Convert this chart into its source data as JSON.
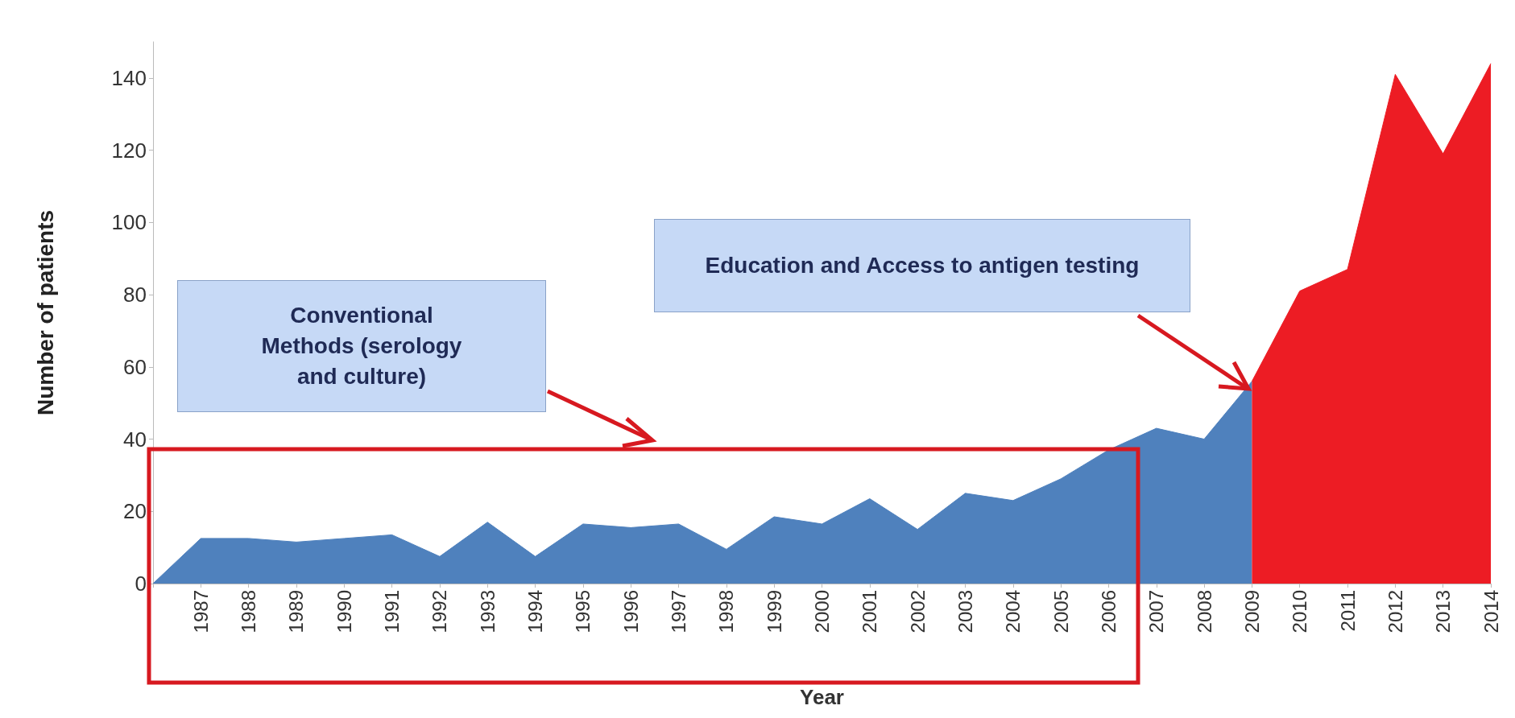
{
  "chart_data": {
    "type": "area",
    "xlabel": "Year",
    "ylabel": "Number of patients",
    "categories": [
      null,
      "1987",
      "1988",
      "1989",
      "1990",
      "1991",
      "1992",
      "1993",
      "1994",
      "1995",
      "1996",
      "1997",
      "1998",
      "1999",
      "2000",
      "2001",
      "2002",
      "2003",
      "2004",
      "2005",
      "2006",
      "2007",
      "2008",
      "2009",
      "2010",
      "2011",
      "2012",
      "2013",
      "2014"
    ],
    "series": [
      {
        "color": "#4f81bd",
        "values": [
          0,
          12.5,
          12.5,
          11.5,
          12.5,
          13.5,
          7.5,
          17,
          7.5,
          16.5,
          15.5,
          16.5,
          9.5,
          18.5,
          16.5,
          23.5,
          15,
          25,
          23,
          29,
          37,
          43,
          40,
          56,
          null,
          null,
          null,
          null,
          null
        ]
      },
      {
        "color": "#ed1c24",
        "values": [
          null,
          null,
          null,
          null,
          null,
          null,
          null,
          null,
          null,
          null,
          null,
          null,
          null,
          null,
          null,
          null,
          null,
          null,
          null,
          null,
          null,
          null,
          null,
          56,
          81,
          87,
          141,
          119,
          144
        ]
      }
    ],
    "ylim": [
      0,
      150
    ],
    "yticks": [
      0,
      20,
      40,
      60,
      80,
      100,
      120,
      140
    ],
    "grid": false,
    "annotations": [
      "Conventional Methods (serology and culture)",
      "Education and Access to antigen testing"
    ]
  }
}
